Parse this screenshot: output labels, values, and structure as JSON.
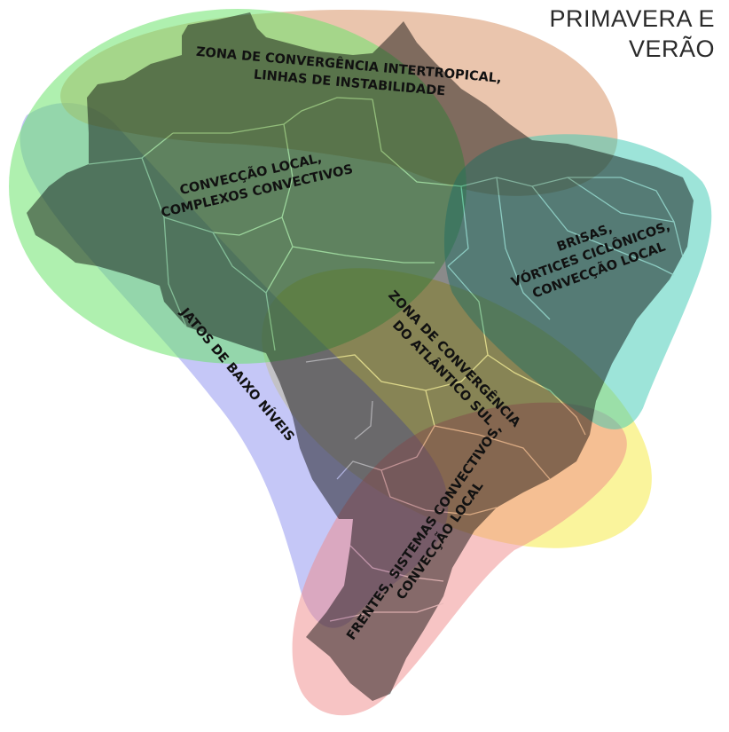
{
  "title": {
    "line1": "PRIMAVERA E",
    "line2": "VERÃO"
  },
  "zones": {
    "itcz": {
      "line1": "ZONA DE CONVERGÊNCIA INTERTROPICAL,",
      "line2": "LINHAS DE INSTABILIDADE",
      "color": "#d9956a"
    },
    "local_convection": {
      "line1": "CONVECÇÃO LOCAL,",
      "line2": "COMPLEXOS CONVECTIVOS",
      "color": "#6ee36e"
    },
    "northeast": {
      "line1": "BRISAS,",
      "line2": "VÓRTICES CICLÔNICOS,",
      "line3": "CONVECÇÃO LOCAL",
      "color": "#3cc9b4"
    },
    "low_level_jets": {
      "line1": "JATOS DE BAIXO NÍVEIS",
      "color": "#8c8ff0"
    },
    "sacz": {
      "line1": "ZONA DE CONVERGÊNCIA",
      "line2": "DO ATLÂNTICO SUL",
      "color": "#f7ec5a"
    },
    "south": {
      "line1": "FRENTES, SISTEMAS CONVECTIVOS,",
      "line2": "CONVECÇÃO LOCAL",
      "color": "#f08a8a"
    }
  },
  "map": {
    "land_color": "#8a8a8a",
    "border_color": "#f2f2f2"
  }
}
